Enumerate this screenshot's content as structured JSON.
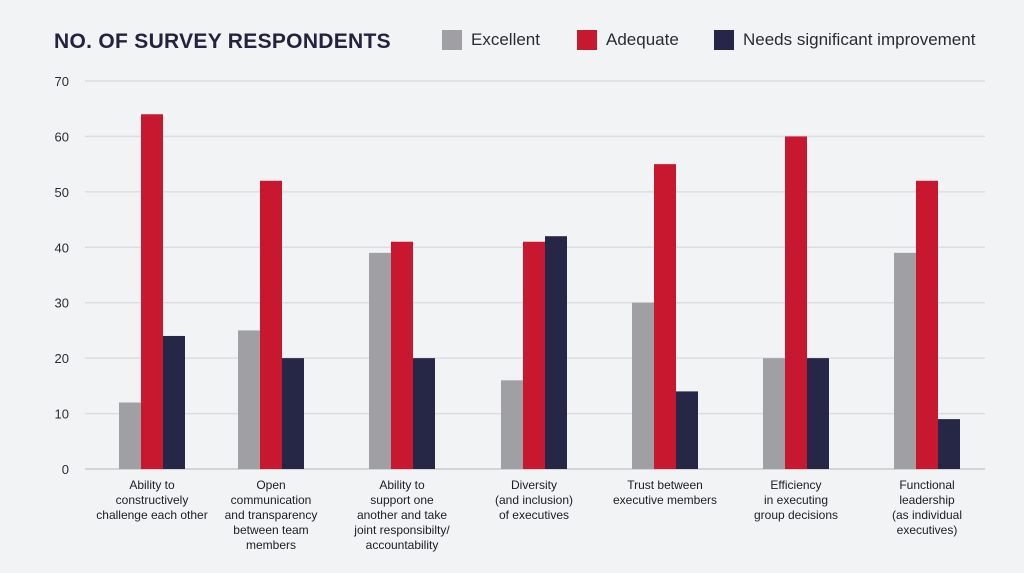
{
  "chart_data": {
    "type": "bar",
    "title": "NO. OF SURVEY RESPONDENTS",
    "xlabel": "",
    "ylabel": "",
    "ylim": [
      0,
      70
    ],
    "yticks": [
      "0",
      "10",
      "20",
      "30",
      "40",
      "50",
      "60",
      "70"
    ],
    "grid": true,
    "legend_position": "top-right",
    "categories": [
      [
        "Ability to",
        "constructively",
        "challenge each other"
      ],
      [
        "Open",
        "communication",
        "and transparency",
        "between team",
        "members"
      ],
      [
        "Ability to",
        "support one",
        "another and take",
        "joint responsibilty/",
        "accountability"
      ],
      [
        "Diversity",
        "(and inclusion)",
        "of executives"
      ],
      [
        "Trust between",
        "executive members"
      ],
      [
        "Efficiency",
        "in executing",
        "group decisions"
      ],
      [
        "Functional",
        "leadership",
        "(as individual",
        "executives)"
      ]
    ],
    "series": [
      {
        "name": "Excellent",
        "color": "#a0a0a4",
        "values": [
          12,
          25,
          39,
          16,
          30,
          20,
          39
        ]
      },
      {
        "name": "Adequate",
        "color": "#c8182f",
        "values": [
          64,
          52,
          41,
          41,
          55,
          60,
          52
        ]
      },
      {
        "name": "Needs significant improvement",
        "color": "#262646",
        "values": [
          24,
          20,
          20,
          42,
          14,
          20,
          9
        ]
      }
    ]
  }
}
